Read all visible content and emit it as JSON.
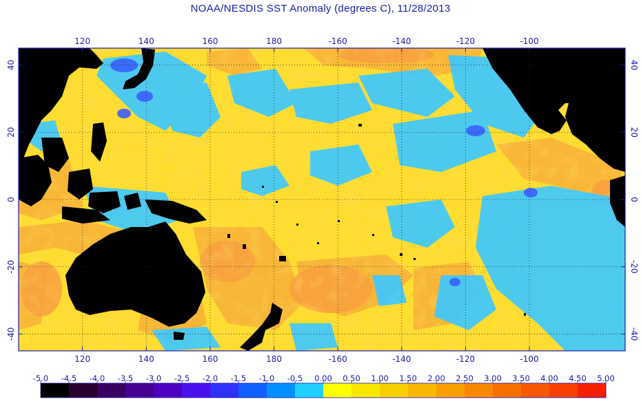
{
  "title": "NOAA/NESDIS SST Anomaly (degrees C), 11/28/2013",
  "map": {
    "lon_range": [
      100,
      290
    ],
    "lat_range": [
      -45,
      45
    ],
    "lon_ticks": [
      {
        "value": 120,
        "label": "120"
      },
      {
        "value": 140,
        "label": "140"
      },
      {
        "value": 160,
        "label": "160"
      },
      {
        "value": 180,
        "label": "180"
      },
      {
        "value": 200,
        "label": "-160"
      },
      {
        "value": 220,
        "label": "-140"
      },
      {
        "value": 240,
        "label": "-120"
      },
      {
        "value": 260,
        "label": "-100"
      }
    ],
    "lat_ticks": [
      {
        "value": 40,
        "label": "40"
      },
      {
        "value": 20,
        "label": "20"
      },
      {
        "value": 0,
        "label": "0"
      },
      {
        "value": -20,
        "label": "-20"
      },
      {
        "value": -40,
        "label": "-40"
      }
    ],
    "grid": "dotted",
    "land_color": "#000000",
    "frame_color": "#1a1aa8"
  },
  "colorbar": {
    "labels": [
      "-5.0",
      "-4.5",
      "-4.0",
      "-3.5",
      "-3.0",
      "-2.5",
      "-2.0",
      "-1.5",
      "-1.0",
      "-0.5",
      "0.00",
      "0.50",
      "1.00",
      "1.50",
      "2.00",
      "2.50",
      "3.00",
      "3.50",
      "4.00",
      "4.50",
      "5.00"
    ],
    "colors": [
      "#000000",
      "#2a0030",
      "#3c0060",
      "#480090",
      "#5000c0",
      "#4a10ee",
      "#3030ff",
      "#1060ff",
      "#0090ff",
      "#20d0ff",
      "#ffff00",
      "#f8e800",
      "#f8d000",
      "#f8b800",
      "#f8a000",
      "#f88800",
      "#f87000",
      "#f85800",
      "#f84000",
      "#f82000"
    ]
  }
}
